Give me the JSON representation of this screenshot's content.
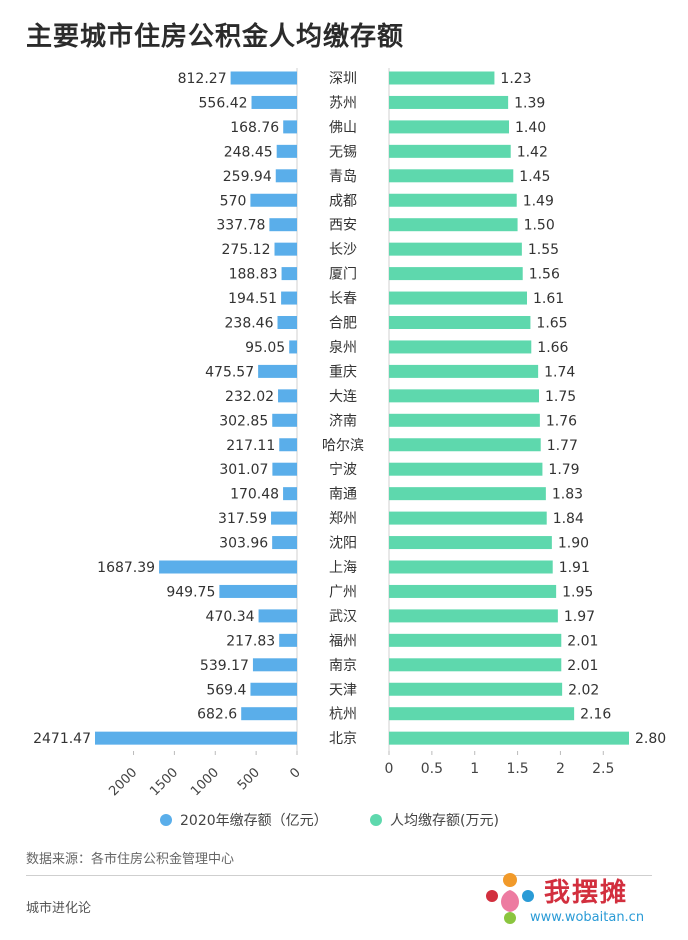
{
  "title": "主要城市住房公积金人均缴存额",
  "chart_data": [
    {
      "type": "bar",
      "orientation": "horizontal",
      "series": [
        {
          "name": "2020年缴存额（亿元）",
          "values": [
            812.27,
            556.42,
            168.76,
            248.45,
            259.94,
            570,
            337.78,
            275.12,
            188.83,
            194.51,
            238.46,
            95.05,
            475.57,
            232.02,
            302.85,
            217.11,
            301.07,
            170.48,
            317.59,
            303.96,
            1687.39,
            949.75,
            470.34,
            217.83,
            539.17,
            569.4,
            682.6,
            2471.47
          ]
        }
      ],
      "value_labels": [
        "812.27",
        "556.42",
        "168.76",
        "248.45",
        "259.94",
        "570",
        "337.78",
        "275.12",
        "188.83",
        "194.51",
        "238.46",
        "95.05",
        "475.57",
        "232.02",
        "302.85",
        "217.11",
        "301.07",
        "170.48",
        "317.59",
        "303.96",
        "1687.39",
        "949.75",
        "470.34",
        "217.83",
        "539.17",
        "569.4",
        "682.6",
        "2471.47"
      ],
      "xlim": [
        0,
        2500
      ],
      "x_reversed": true,
      "ticks": [
        "2000",
        "1500",
        "1000",
        "500",
        "0"
      ],
      "tick_values": [
        2000,
        1500,
        1000,
        500,
        0
      ],
      "color": "#5aaeea"
    },
    {
      "type": "bar",
      "orientation": "horizontal",
      "series": [
        {
          "name": "人均缴存额(万元)",
          "values": [
            1.23,
            1.39,
            1.4,
            1.42,
            1.45,
            1.49,
            1.5,
            1.55,
            1.56,
            1.61,
            1.65,
            1.66,
            1.74,
            1.75,
            1.76,
            1.77,
            1.79,
            1.83,
            1.84,
            1.9,
            1.91,
            1.95,
            1.97,
            2.01,
            2.01,
            2.02,
            2.16,
            2.8
          ]
        }
      ],
      "value_labels": [
        "1.23",
        "1.39",
        "1.40",
        "1.42",
        "1.45",
        "1.49",
        "1.50",
        "1.55",
        "1.56",
        "1.61",
        "1.65",
        "1.66",
        "1.74",
        "1.75",
        "1.76",
        "1.77",
        "1.79",
        "1.83",
        "1.84",
        "1.90",
        "1.91",
        "1.95",
        "1.97",
        "2.01",
        "2.01",
        "2.02",
        "2.16",
        "2.80"
      ],
      "xlim": [
        0,
        2.85
      ],
      "ticks": [
        "0",
        "0.5",
        "1",
        "1.5",
        "2",
        "2.5"
      ],
      "tick_values": [
        0,
        0.5,
        1,
        1.5,
        2,
        2.5
      ],
      "color": "#5ed8ad"
    }
  ],
  "categories": [
    "深圳",
    "苏州",
    "佛山",
    "无锡",
    "青岛",
    "成都",
    "西安",
    "长沙",
    "厦门",
    "长春",
    "合肥",
    "泉州",
    "重庆",
    "大连",
    "济南",
    "哈尔滨",
    "宁波",
    "南通",
    "郑州",
    "沈阳",
    "上海",
    "广州",
    "武汉",
    "福州",
    "南京",
    "天津",
    "杭州",
    "北京"
  ],
  "legend": [
    {
      "label": "2020年缴存额（亿元）",
      "color": "#5aaeea"
    },
    {
      "label": "人均缴存额(万元)",
      "color": "#5ed8ad"
    }
  ],
  "source": "数据来源：各市住房公积金管理中心",
  "footer": "城市进化论",
  "watermark": {
    "name": "我摆摊",
    "url": "www.wobaitan.cn"
  }
}
